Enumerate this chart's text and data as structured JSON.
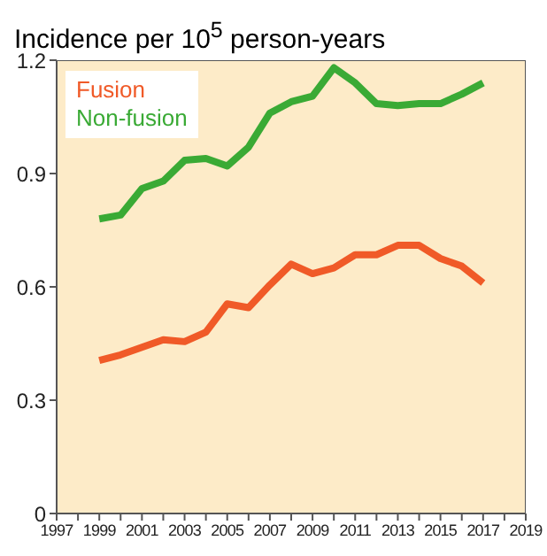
{
  "chart_data": {
    "type": "line",
    "title": "Incidence per 10$^{5}$ person-years",
    "x": [
      1999,
      2000,
      2001,
      2002,
      2003,
      2004,
      2005,
      2006,
      2007,
      2008,
      2009,
      2010,
      2011,
      2012,
      2013,
      2014,
      2015,
      2016,
      2017
    ],
    "series": [
      {
        "name": "Fusion",
        "color": "#f05a28",
        "values": [
          0.405,
          0.42,
          0.44,
          0.46,
          0.455,
          0.48,
          0.555,
          0.545,
          0.605,
          0.66,
          0.635,
          0.65,
          0.685,
          0.685,
          0.71,
          0.71,
          0.675,
          0.655,
          0.61
        ]
      },
      {
        "name": "Non-fusion",
        "color": "#3aaa35",
        "values": [
          0.78,
          0.79,
          0.86,
          0.88,
          0.935,
          0.94,
          0.92,
          0.97,
          1.06,
          1.09,
          1.105,
          1.18,
          1.14,
          1.085,
          1.08,
          1.085,
          1.085,
          1.11,
          1.14
        ]
      }
    ],
    "xlim": [
      1997,
      2019
    ],
    "xticks": [
      1997,
      {
        "value": 1998,
        "label": null
      },
      1999,
      {
        "value": 2000,
        "label": null
      },
      2001,
      {
        "value": 2002,
        "label": null
      },
      2003,
      {
        "value": 2004,
        "label": null
      },
      2005,
      {
        "value": 2006,
        "label": null
      },
      2007,
      {
        "value": 2008,
        "label": null
      },
      2009,
      {
        "value": 2010,
        "label": null
      },
      2011,
      {
        "value": 2012,
        "label": null
      },
      2013,
      {
        "value": 2014,
        "label": null
      },
      2015,
      {
        "value": 2016,
        "label": null
      },
      2017,
      {
        "value": 2018,
        "label": null
      },
      2019
    ],
    "ylim": [
      0,
      1.2
    ],
    "yticks": [
      0,
      0.3,
      0.6,
      0.9,
      1.2
    ],
    "grid": false,
    "legend": "top left",
    "marker": "none",
    "line_style": "solid"
  }
}
